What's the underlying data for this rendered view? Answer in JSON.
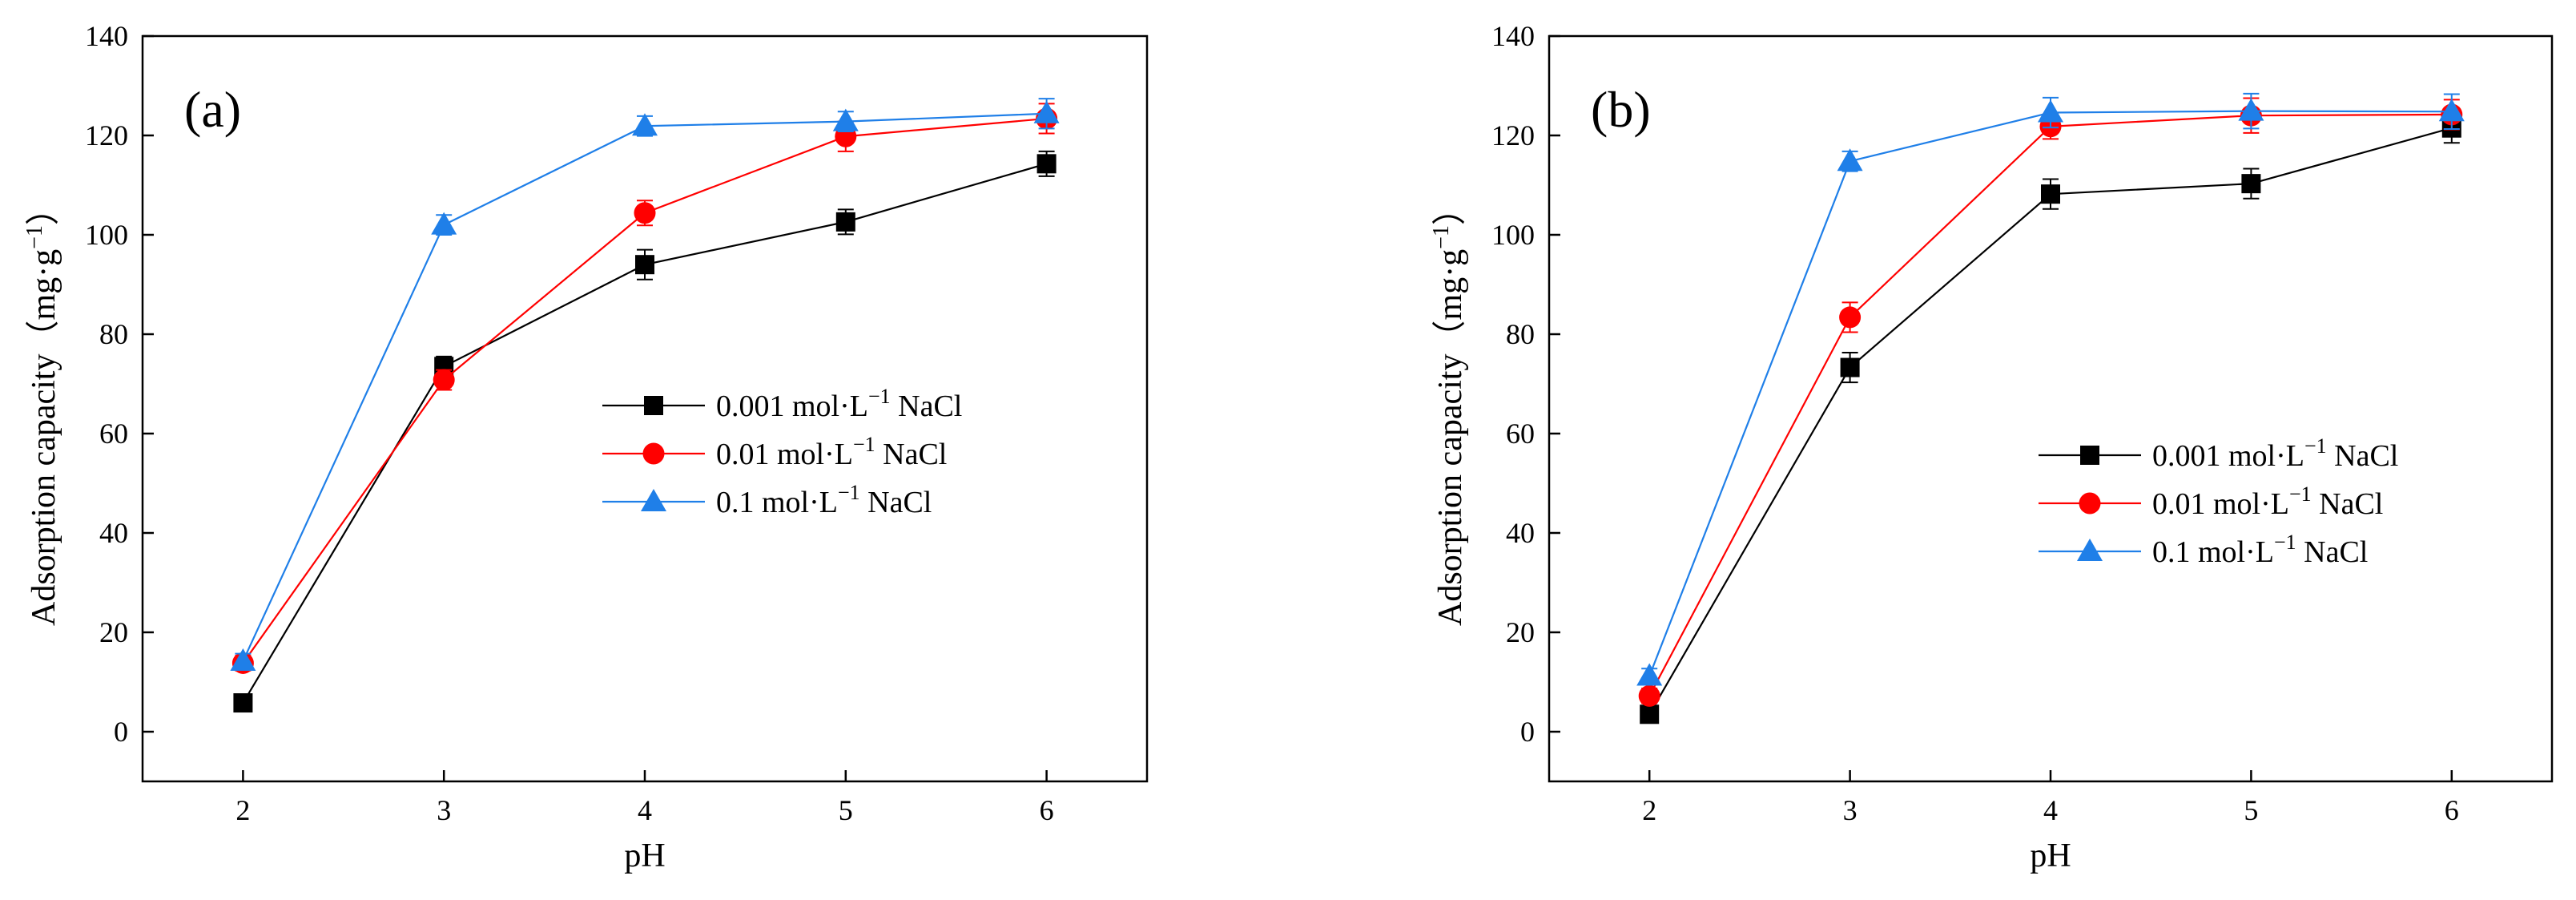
{
  "chart_data": [
    {
      "type": "line",
      "panel_label": "(a)",
      "xlabel": "pH",
      "ylabel_main": "Adsorption capacity（mg·g",
      "ylabel_sup": "−1",
      "ylabel_close": "）",
      "x": [
        2,
        3,
        4,
        5,
        6
      ],
      "x_ticks": [
        "2",
        "3",
        "4",
        "5",
        "6"
      ],
      "xlim": [
        1.5,
        6.5
      ],
      "ylim": [
        -10,
        140
      ],
      "y_ticks": [
        "0",
        "20",
        "40",
        "60",
        "80",
        "100",
        "120",
        "140"
      ],
      "legend_position": "center-right",
      "series": [
        {
          "name": "0.001 mol·L",
          "name_sup": "−1",
          "name_suffix": " NaCl",
          "color": "#000000",
          "marker": "square",
          "values": [
            5.8,
            73.5,
            94.0,
            102.6,
            114.3
          ],
          "errors": [
            1.5,
            2.0,
            3.0,
            2.5,
            2.5
          ]
        },
        {
          "name": "0.01 mol·L",
          "name_sup": "−1",
          "name_suffix": " NaCl",
          "color": "#ff0000",
          "marker": "circle",
          "values": [
            13.8,
            70.8,
            104.4,
            119.8,
            123.4
          ],
          "errors": [
            1.5,
            2.0,
            2.5,
            3.0,
            3.0
          ]
        },
        {
          "name": "0.1 mol·L",
          "name_sup": "−1",
          "name_suffix": " NaCl",
          "color": "#1f7fe8",
          "marker": "triangle",
          "values": [
            14.2,
            102.0,
            121.9,
            122.8,
            124.4
          ],
          "errors": [
            1.5,
            2.0,
            2.0,
            2.0,
            3.0
          ]
        }
      ]
    },
    {
      "type": "line",
      "panel_label": "(b)",
      "xlabel": "pH",
      "ylabel_main": "Adsorption capacity（mg·g",
      "ylabel_sup": "−1",
      "ylabel_close": "）",
      "x": [
        2,
        3,
        4,
        5,
        6
      ],
      "x_ticks": [
        "2",
        "3",
        "4",
        "5",
        "6"
      ],
      "xlim": [
        1.5,
        6.5
      ],
      "ylim": [
        -10,
        140
      ],
      "y_ticks": [
        "0",
        "20",
        "40",
        "60",
        "80",
        "100",
        "120",
        "140"
      ],
      "legend_position": "lower-right",
      "series": [
        {
          "name": "0.001 mol·L",
          "name_sup": "−1",
          "name_suffix": " NaCl",
          "color": "#000000",
          "marker": "square",
          "values": [
            3.5,
            73.3,
            108.2,
            110.3,
            121.5
          ],
          "errors": [
            1.5,
            3.0,
            3.0,
            3.0,
            3.0
          ]
        },
        {
          "name": "0.01 mol·L",
          "name_sup": "−1",
          "name_suffix": " NaCl",
          "color": "#ff0000",
          "marker": "circle",
          "values": [
            7.2,
            83.4,
            121.8,
            124.0,
            124.2
          ],
          "errors": [
            1.5,
            3.0,
            2.5,
            3.5,
            3.0
          ]
        },
        {
          "name": "0.1 mol·L",
          "name_sup": "−1",
          "name_suffix": " NaCl",
          "color": "#1f7fe8",
          "marker": "triangle",
          "values": [
            11.2,
            114.8,
            124.6,
            124.9,
            124.8
          ],
          "errors": [
            1.5,
            2.0,
            3.0,
            3.5,
            3.5
          ]
        }
      ]
    }
  ]
}
